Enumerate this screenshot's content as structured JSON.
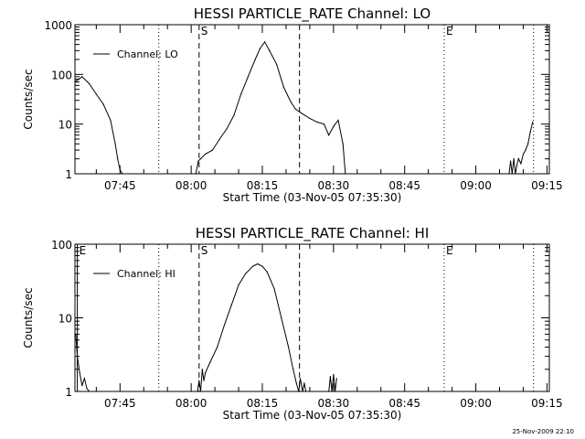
{
  "timestamp": "25-Nov-2009 22:10",
  "chart_data": [
    {
      "type": "line",
      "title": "HESSI PARTICLE_RATE Channel: LO",
      "xlabel": "Start Time (03-Nov-05 07:35:30)",
      "ylabel": "Counts/sec",
      "yscale": "log",
      "ylim": [
        1,
        1000
      ],
      "yticks": [
        "1",
        "10",
        "100",
        "1000"
      ],
      "xlim": [
        "07:35:30",
        "09:15:30"
      ],
      "xticks": [
        "07:45",
        "08:00",
        "08:15",
        "08:30",
        "08:45",
        "09:00",
        "09:15"
      ],
      "legend": "top-left",
      "series": [
        {
          "name": "Channel: LO",
          "x": [
            "07:35:30",
            "07:37:00",
            "07:38:30",
            "07:40:00",
            "07:41:30",
            "07:43:00",
            "07:44:00",
            "07:44:30",
            "07:45:00",
            "07:45:30",
            "08:01:00",
            "08:01:30",
            "08:02:00",
            "08:03:00",
            "08:04:30",
            "08:06:00",
            "08:07:30",
            "08:09:00",
            "08:10:30",
            "08:12:00",
            "08:13:30",
            "08:14:30",
            "08:15:30",
            "08:16:30",
            "08:18:00",
            "08:19:30",
            "08:21:00",
            "08:22:00",
            "08:23:30",
            "08:25:00",
            "08:26:30",
            "08:28:00",
            "08:29:00",
            "08:30:00",
            "08:31:00",
            "08:32:00",
            "08:32:30",
            "09:07:00",
            "09:07:20",
            "09:07:40",
            "09:08:00",
            "09:08:20",
            "09:08:40",
            "09:09:00",
            "09:09:30",
            "09:10:00",
            "09:10:30",
            "09:11:00",
            "09:11:30",
            "09:12:00"
          ],
          "values": [
            70,
            90,
            65,
            40,
            25,
            12,
            4,
            2,
            1.2,
            1,
            1,
            1.8,
            2,
            2.5,
            3,
            5,
            8,
            15,
            40,
            90,
            200,
            330,
            450,
            300,
            160,
            55,
            28,
            20,
            16,
            13,
            11,
            10,
            6,
            9,
            12,
            4,
            1,
            1,
            1.8,
            1,
            2,
            1,
            1.5,
            2,
            1.6,
            2.5,
            3,
            4,
            7,
            11
          ],
          "color": "#000000"
        }
      ],
      "markers": [
        {
          "label": "S",
          "time": "08:01:40",
          "style": "dashed"
        },
        {
          "label": "",
          "time": "08:22:50",
          "style": "dashed"
        },
        {
          "label": "",
          "time": "07:53:10",
          "style": "dotted"
        },
        {
          "label": "E",
          "time": "08:53:20",
          "style": "dotted"
        },
        {
          "label": "",
          "time": "09:12:10",
          "style": "dotted"
        }
      ]
    },
    {
      "type": "line",
      "title": "HESSI PARTICLE_RATE Channel: HI",
      "xlabel": "Start Time (03-Nov-05 07:35:30)",
      "ylabel": "Counts/sec",
      "yscale": "log",
      "ylim": [
        1,
        100
      ],
      "yticks": [
        "1",
        "10",
        "100"
      ],
      "xlim": [
        "07:35:30",
        "09:15:30"
      ],
      "xticks": [
        "07:45",
        "08:00",
        "08:15",
        "08:30",
        "08:45",
        "09:00",
        "09:15"
      ],
      "legend": "top-left",
      "series": [
        {
          "name": "Channel: HI",
          "x": [
            "07:35:40",
            "07:36:00",
            "07:36:30",
            "07:37:00",
            "07:37:30",
            "07:38:00",
            "07:38:30",
            "08:01:20",
            "08:01:40",
            "08:02:00",
            "08:02:20",
            "08:02:40",
            "08:03:00",
            "08:04:00",
            "08:05:30",
            "08:07:00",
            "08:08:30",
            "08:10:00",
            "08:11:30",
            "08:13:00",
            "08:14:00",
            "08:15:00",
            "08:16:00",
            "08:17:30",
            "08:19:00",
            "08:20:30",
            "08:21:30",
            "08:22:10",
            "08:22:40",
            "08:23:00",
            "08:23:30",
            "08:23:50",
            "08:24:10",
            "08:29:00",
            "08:29:20",
            "08:29:40",
            "08:30:00",
            "08:30:20",
            "08:30:40"
          ],
          "values": [
            6,
            3,
            1.8,
            1.2,
            1.5,
            1.1,
            1,
            1,
            1.4,
            1,
            2,
            1.4,
            1.8,
            2.5,
            4,
            8,
            15,
            28,
            40,
            50,
            54,
            50,
            42,
            25,
            10,
            4,
            2,
            1.3,
            1,
            1.5,
            1,
            1.3,
            1,
            1,
            1.6,
            1,
            1.7,
            1,
            1.5
          ],
          "color": "#000000"
        }
      ],
      "markers": [
        {
          "label": "E",
          "time": "07:36:00",
          "style": "solid"
        },
        {
          "label": "S",
          "time": "08:01:40",
          "style": "dashed"
        },
        {
          "label": "",
          "time": "08:22:50",
          "style": "dashed"
        },
        {
          "label": "",
          "time": "07:53:10",
          "style": "dotted"
        },
        {
          "label": "E",
          "time": "08:53:20",
          "style": "dotted"
        },
        {
          "label": "",
          "time": "09:12:10",
          "style": "dotted"
        }
      ]
    }
  ]
}
